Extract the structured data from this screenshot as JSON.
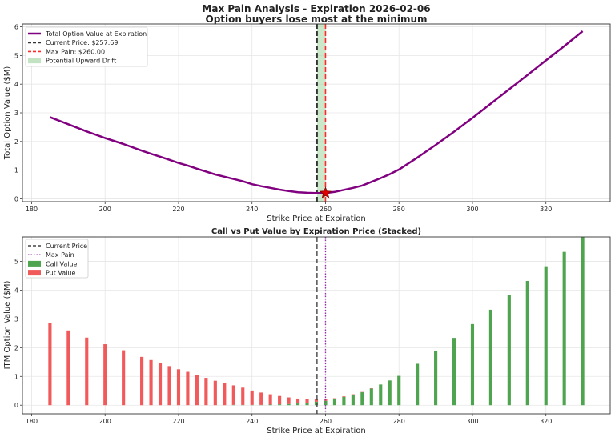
{
  "chart_data": [
    {
      "type": "line",
      "title": "Max Pain Analysis - Expiration 2026-02-06",
      "subtitle": "Option buyers lose most at the minimum",
      "xlabel": "Strike Price at Expiration",
      "ylabel": "Total Option Value ($M)",
      "xlim": [
        177.5,
        337.5
      ],
      "ylim": [
        -0.1,
        6.1
      ],
      "xticks": [
        "180",
        "200",
        "220",
        "240",
        "260",
        "280",
        "300",
        "320"
      ],
      "yticks": [
        "0",
        "1",
        "2",
        "3",
        "4",
        "5",
        "6"
      ],
      "grid": true,
      "legend_position": "top-left",
      "legend": [
        "Total Option Value at Expiration",
        "Current Price: $257.69",
        "Max Pain: $260.00",
        "Potential Upward Drift"
      ],
      "current_price": 257.69,
      "max_pain": 260.0,
      "max_pain_value": 0.2,
      "colors": {
        "curve": "#800080",
        "current": "#333333",
        "maxpain": "#ff2a2a",
        "drift": "#a8d8a8",
        "star": "#dd0000"
      },
      "x": [
        185,
        190,
        195,
        200,
        205,
        210,
        212.5,
        215,
        217.5,
        220,
        222.5,
        225,
        227.5,
        230,
        232.5,
        235,
        237.5,
        240,
        242.5,
        245,
        247.5,
        250,
        252.5,
        255,
        257.5,
        260,
        262.5,
        265,
        267.5,
        270,
        272.5,
        275,
        277.5,
        280,
        285,
        290,
        295,
        300,
        305,
        310,
        315,
        320,
        325,
        330
      ],
      "y": [
        2.85,
        2.6,
        2.35,
        2.12,
        1.91,
        1.68,
        1.57,
        1.47,
        1.36,
        1.25,
        1.16,
        1.05,
        0.95,
        0.85,
        0.77,
        0.69,
        0.61,
        0.51,
        0.44,
        0.38,
        0.32,
        0.27,
        0.23,
        0.21,
        0.2,
        0.2,
        0.24,
        0.31,
        0.38,
        0.46,
        0.59,
        0.72,
        0.86,
        1.02,
        1.44,
        1.88,
        2.34,
        2.82,
        3.32,
        3.82,
        4.32,
        4.83,
        5.33,
        5.85
      ]
    },
    {
      "type": "bar",
      "stacked": true,
      "title": "Call vs Put Value by Expiration Price (Stacked)",
      "xlabel": "Strike Price at Expiration",
      "ylabel": "ITM Option Value ($M)",
      "xlim": [
        177.5,
        337.5
      ],
      "ylim": [
        -0.3,
        5.85
      ],
      "xticks": [
        "180",
        "200",
        "220",
        "240",
        "260",
        "280",
        "300",
        "320"
      ],
      "yticks": [
        "0",
        "1",
        "2",
        "3",
        "4",
        "5"
      ],
      "grid": true,
      "legend_position": "top-left",
      "legend": [
        "Current Price",
        "Max Pain",
        "Call Value",
        "Put Value"
      ],
      "current_price": 257.69,
      "max_pain": 260.0,
      "colors": {
        "call": "#3c9a3c",
        "put": "#f04848",
        "current": "#444444",
        "maxpain": "#9933aa"
      },
      "categories": [
        185,
        190,
        195,
        200,
        205,
        210,
        212.5,
        215,
        217.5,
        220,
        222.5,
        225,
        227.5,
        230,
        232.5,
        235,
        237.5,
        240,
        242.5,
        245,
        247.5,
        250,
        252.5,
        255,
        257.5,
        260,
        262.5,
        265,
        267.5,
        270,
        272.5,
        275,
        277.5,
        280,
        285,
        290,
        295,
        300,
        305,
        310,
        315,
        320,
        325,
        330
      ],
      "series": [
        {
          "name": "Call Value",
          "values": [
            0,
            0,
            0,
            0,
            0,
            0,
            0,
            0,
            0,
            0,
            0,
            0,
            0,
            0,
            0,
            0.01,
            0.01,
            0.01,
            0.01,
            0.02,
            0.03,
            0.04,
            0.06,
            0.09,
            0.12,
            0.15,
            0.21,
            0.29,
            0.37,
            0.45,
            0.58,
            0.72,
            0.86,
            1.02,
            1.44,
            1.88,
            2.34,
            2.82,
            3.32,
            3.82,
            4.32,
            4.83,
            5.33,
            5.85
          ]
        },
        {
          "name": "Put Value",
          "values": [
            2.85,
            2.6,
            2.35,
            2.12,
            1.91,
            1.68,
            1.57,
            1.47,
            1.36,
            1.25,
            1.16,
            1.05,
            0.95,
            0.85,
            0.77,
            0.68,
            0.6,
            0.5,
            0.43,
            0.36,
            0.29,
            0.23,
            0.17,
            0.12,
            0.08,
            0.05,
            0.03,
            0.02,
            0.01,
            0.01,
            0.01,
            0,
            0,
            0,
            0,
            0,
            0,
            0,
            0,
            0,
            0,
            0,
            0,
            0
          ]
        }
      ]
    }
  ]
}
